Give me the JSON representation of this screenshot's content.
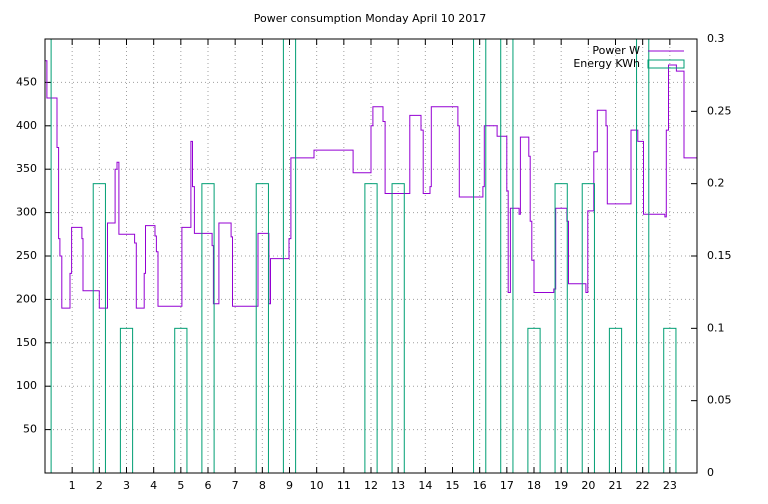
{
  "chart_data": {
    "type": "step-boxes",
    "title": "Power consumption Monday April 10 2017",
    "xlim": [
      0,
      24
    ],
    "xticks": [
      1,
      2,
      3,
      4,
      5,
      6,
      7,
      8,
      9,
      10,
      11,
      12,
      13,
      14,
      15,
      16,
      17,
      18,
      19,
      20,
      21,
      22,
      23
    ],
    "ylim": [
      0,
      500
    ],
    "yticks": [
      50,
      100,
      150,
      200,
      250,
      300,
      350,
      400,
      450
    ],
    "y2lim": [
      0,
      0.3
    ],
    "y2ticks": [
      0,
      0.05,
      0.1,
      0.15,
      0.2,
      0.25,
      0.3
    ],
    "grid": true,
    "legend": "top-right",
    "series": [
      {
        "name": "Power W",
        "color": "#9400d3",
        "style": "steps",
        "x": [
          0,
          0.07,
          0.44,
          0.5,
          0.55,
          0.62,
          0.92,
          0.98,
          1.36,
          1.4,
          2.0,
          2.3,
          2.58,
          2.65,
          2.72,
          3.3,
          3.36,
          3.65,
          3.7,
          4.05,
          4.1,
          4.16,
          5.04,
          5.37,
          5.43,
          5.5,
          6.15,
          6.2,
          6.4,
          6.85,
          6.9,
          7.84,
          8.24,
          8.3,
          8.98,
          9.05,
          9.9,
          11.34,
          12.0,
          12.07,
          12.44,
          12.52,
          13.43,
          13.84,
          13.92,
          14.17,
          14.22,
          15.2,
          15.25,
          16.12,
          16.17,
          16.64,
          17.0,
          17.05,
          17.13,
          17.45,
          17.5,
          17.81,
          17.86,
          17.92,
          18.0,
          18.73,
          18.8,
          19.21,
          19.27,
          19.91,
          19.98,
          20.2,
          20.33,
          20.65,
          20.7,
          21.57,
          21.82,
          22.03,
          22.82,
          22.87,
          22.95,
          23.24,
          23.52
        ],
        "values": [
          475,
          432,
          375,
          270,
          250,
          190,
          230,
          283,
          270,
          210,
          190,
          288,
          350,
          358,
          275,
          265,
          190,
          230,
          285,
          273,
          255,
          192,
          283,
          382,
          330,
          276,
          262,
          195,
          288,
          272,
          192,
          276,
          195,
          247,
          270,
          363,
          372,
          346,
          400,
          422,
          405,
          322,
          412,
          395,
          322,
          330,
          422,
          400,
          318,
          330,
          400,
          388,
          325,
          208,
          305,
          298,
          387,
          365,
          290,
          245,
          208,
          212,
          305,
          290,
          218,
          208,
          302,
          370,
          418,
          400,
          310,
          395,
          382,
          298,
          295,
          395,
          470,
          463,
          363
        ]
      },
      {
        "name": "Energy KWh",
        "color": "#009e73",
        "style": "boxes",
        "axis": "y2",
        "x": [
          0,
          2,
          3,
          5,
          6,
          8,
          9,
          12,
          13,
          16,
          17,
          18,
          19,
          20,
          21,
          22,
          23
        ],
        "values": [
          0.3,
          0.2,
          0.1,
          0.1,
          0.2,
          0.2,
          0.3,
          0.2,
          0.2,
          0.3,
          0.3,
          0.1,
          0.2,
          0.2,
          0.1,
          0.3,
          0.1
        ]
      }
    ]
  }
}
